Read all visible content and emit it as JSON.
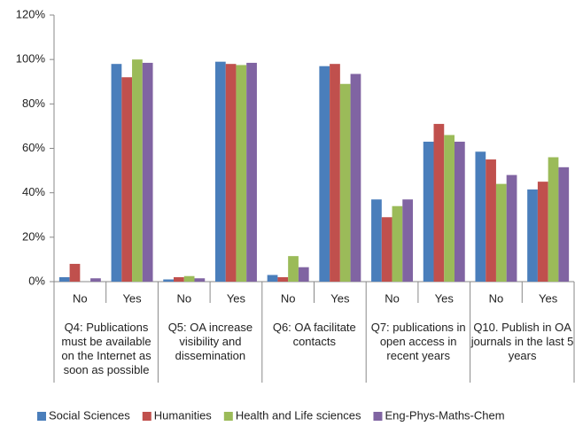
{
  "chart_data": {
    "type": "bar",
    "categories": [
      "No",
      "Yes",
      "No",
      "Yes",
      "No",
      "Yes",
      "No",
      "Yes",
      "No",
      "Yes"
    ],
    "groups": [
      "Q4: Publications must be available on the Internet as soon as possible",
      "Q5: OA increase visibility and dissemination",
      "Q6: OA facilitate contacts",
      "Q7: publications in open access in recent years",
      "Q10. Publish in OA journals in the last 5 years"
    ],
    "series": [
      {
        "name": "Social Sciences",
        "color": "#4a7ebb",
        "values": [
          2,
          98,
          1,
          99,
          3,
          97,
          37,
          63,
          58.5,
          41.5
        ]
      },
      {
        "name": "Humanities",
        "color": "#c0504d",
        "values": [
          8,
          92,
          2,
          98,
          2,
          98,
          29,
          71,
          55,
          45
        ]
      },
      {
        "name": "Health and Life sciences",
        "color": "#9bbb59",
        "values": [
          0,
          100,
          2.5,
          97.5,
          11.5,
          89,
          34,
          66,
          44,
          56
        ]
      },
      {
        "name": "Eng-Phys-Maths-Chem",
        "color": "#8064a2",
        "values": [
          1.5,
          98.5,
          1.5,
          98.5,
          6.5,
          93.5,
          37,
          63,
          48,
          51.5
        ]
      }
    ],
    "ylim": [
      0,
      120
    ],
    "yticks": [
      {
        "value": 0,
        "label": "0%"
      },
      {
        "value": 20,
        "label": "20%"
      },
      {
        "value": 40,
        "label": "40%"
      },
      {
        "value": 60,
        "label": "60%"
      },
      {
        "value": 80,
        "label": "80%"
      },
      {
        "value": 100,
        "label": "100%"
      },
      {
        "value": 120,
        "label": "120%"
      }
    ],
    "legend": "bottom"
  }
}
